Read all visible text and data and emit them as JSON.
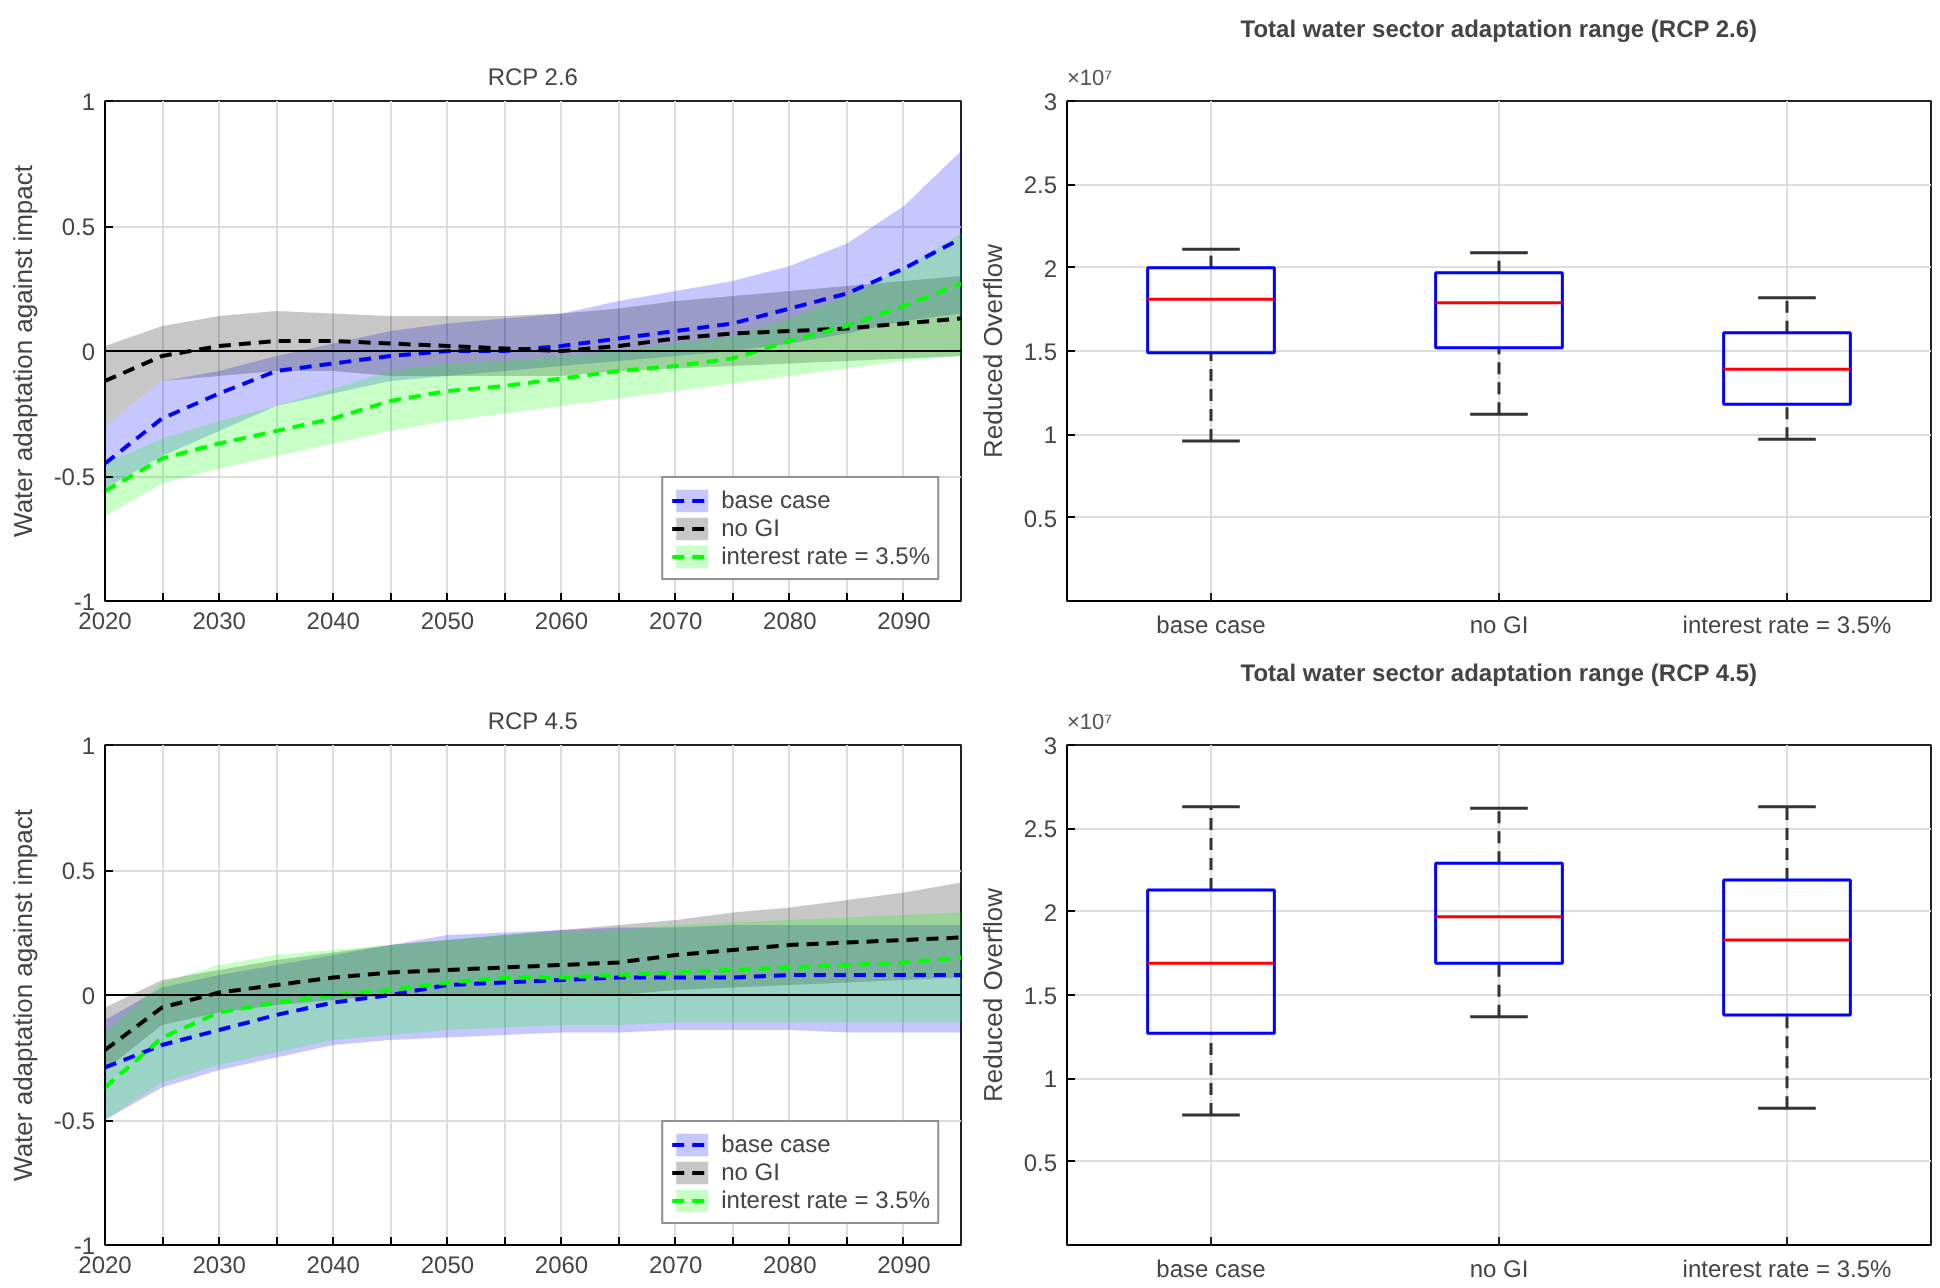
{
  "chart_data": [
    {
      "type": "line",
      "title": "RCP 2.6",
      "ylabel": "Water adaptation against impact",
      "x": [
        2020,
        2025,
        2030,
        2035,
        2040,
        2045,
        2050,
        2055,
        2060,
        2065,
        2070,
        2075,
        2080,
        2085,
        2090,
        2095
      ],
      "series": [
        {
          "name": "base case",
          "color": "#0000ff",
          "values": [
            -0.45,
            -0.27,
            -0.17,
            -0.08,
            -0.05,
            -0.02,
            0.0,
            0.0,
            0.02,
            0.05,
            0.08,
            0.11,
            0.17,
            0.23,
            0.33,
            0.45
          ],
          "upper": [
            -0.3,
            -0.12,
            -0.08,
            -0.02,
            0.03,
            0.08,
            0.11,
            0.13,
            0.15,
            0.2,
            0.24,
            0.28,
            0.34,
            0.43,
            0.58,
            0.8
          ],
          "lower": [
            -0.55,
            -0.42,
            -0.32,
            -0.22,
            -0.17,
            -0.12,
            -0.1,
            -0.08,
            -0.06,
            -0.04,
            -0.02,
            0.0,
            0.03,
            0.07,
            0.12,
            0.15
          ]
        },
        {
          "name": "no GI",
          "color": "#000000",
          "values": [
            -0.12,
            -0.02,
            0.02,
            0.04,
            0.04,
            0.03,
            0.02,
            0.01,
            0.0,
            0.02,
            0.05,
            0.07,
            0.08,
            0.09,
            0.11,
            0.13
          ],
          "upper": [
            0.02,
            0.1,
            0.14,
            0.16,
            0.15,
            0.14,
            0.14,
            0.14,
            0.15,
            0.17,
            0.2,
            0.22,
            0.24,
            0.26,
            0.28,
            0.3
          ],
          "lower": [
            -0.3,
            -0.12,
            -0.1,
            -0.08,
            -0.08,
            -0.1,
            -0.1,
            -0.1,
            -0.1,
            -0.08,
            -0.07,
            -0.06,
            -0.05,
            -0.04,
            -0.03,
            -0.02
          ]
        },
        {
          "name": "interest rate = 3.5%",
          "color": "#00ff00",
          "values": [
            -0.56,
            -0.43,
            -0.37,
            -0.32,
            -0.27,
            -0.2,
            -0.16,
            -0.14,
            -0.11,
            -0.08,
            -0.06,
            -0.03,
            0.04,
            0.1,
            0.18,
            0.27
          ],
          "upper": [
            -0.45,
            -0.35,
            -0.28,
            -0.22,
            -0.15,
            -0.08,
            -0.05,
            -0.04,
            -0.02,
            0.0,
            0.03,
            0.06,
            0.13,
            0.22,
            0.33,
            0.47
          ],
          "lower": [
            -0.66,
            -0.53,
            -0.47,
            -0.42,
            -0.37,
            -0.32,
            -0.28,
            -0.25,
            -0.22,
            -0.19,
            -0.16,
            -0.13,
            -0.1,
            -0.07,
            -0.04,
            -0.02
          ]
        }
      ],
      "xlim": [
        2020,
        2095
      ],
      "ylim": [
        -1,
        1
      ],
      "xticks": [
        2020,
        {
          "value": 2025,
          "label": null
        },
        2030,
        {
          "value": 2035,
          "label": null
        },
        2040,
        {
          "value": 2045,
          "label": null
        },
        2050,
        {
          "value": 2055,
          "label": null
        },
        2060,
        {
          "value": 2065,
          "label": null
        },
        2070,
        {
          "value": 2075,
          "label": null
        },
        2080,
        {
          "value": 2085,
          "label": null
        },
        2090
      ],
      "yticks": [
        -1,
        -0.5,
        0,
        0.5,
        1
      ],
      "ref_lines": [
        {
          "axis": "y",
          "value": 0,
          "color": "#000000"
        }
      ],
      "grid": true,
      "legend": "bottom right",
      "line_style": "dashed"
    },
    {
      "type": "box",
      "title": "Total water sector adaptation range (RCP 2.6)",
      "ylabel": "Reduced Overflow",
      "categories": [
        "base case",
        "no GI",
        "interest rate = 3.5%"
      ],
      "series": [
        {
          "color": "#0000ff",
          "boxes": [
            {
              "low": 0.96,
              "q1": 1.49,
              "median": 1.81,
              "q3": 2.0,
              "high": 2.11
            },
            {
              "low": 1.12,
              "q1": 1.52,
              "median": 1.79,
              "q3": 1.97,
              "high": 2.09
            },
            {
              "low": 0.97,
              "q1": 1.18,
              "median": 1.39,
              "q3": 1.61,
              "high": 1.82
            }
          ]
        }
      ],
      "ylim": [
        0,
        3
      ],
      "yticks": [
        0.5,
        1,
        1.5,
        2,
        2.5,
        3
      ],
      "annotations": [
        "×10⁷"
      ],
      "grid": true
    },
    {
      "type": "line",
      "title": "RCP 4.5",
      "ylabel": "Water adaptation against impact",
      "x": [
        2020,
        2025,
        2030,
        2035,
        2040,
        2045,
        2050,
        2055,
        2060,
        2065,
        2070,
        2075,
        2080,
        2085,
        2090,
        2095
      ],
      "series": [
        {
          "name": "base case",
          "color": "#0000ff",
          "values": [
            -0.29,
            -0.2,
            -0.14,
            -0.08,
            -0.03,
            0.0,
            0.04,
            0.05,
            0.06,
            0.07,
            0.07,
            0.07,
            0.08,
            0.08,
            0.08,
            0.08
          ],
          "upper": [
            -0.1,
            0.03,
            0.08,
            0.12,
            0.16,
            0.2,
            0.24,
            0.25,
            0.26,
            0.27,
            0.27,
            0.28,
            0.28,
            0.28,
            0.28,
            0.28
          ],
          "lower": [
            -0.5,
            -0.37,
            -0.3,
            -0.25,
            -0.2,
            -0.18,
            -0.17,
            -0.16,
            -0.15,
            -0.15,
            -0.14,
            -0.14,
            -0.14,
            -0.15,
            -0.15,
            -0.15
          ]
        },
        {
          "name": "no GI",
          "color": "#000000",
          "values": [
            -0.22,
            -0.05,
            0.01,
            0.04,
            0.07,
            0.09,
            0.1,
            0.11,
            0.12,
            0.13,
            0.16,
            0.18,
            0.2,
            0.21,
            0.22,
            0.23
          ],
          "upper": [
            -0.05,
            0.06,
            0.1,
            0.14,
            0.17,
            0.2,
            0.22,
            0.24,
            0.26,
            0.28,
            0.3,
            0.33,
            0.35,
            0.38,
            0.41,
            0.45
          ],
          "lower": [
            -0.3,
            -0.12,
            -0.07,
            -0.04,
            -0.02,
            0.0,
            0.0,
            0.0,
            0.0,
            0.0,
            0.02,
            0.03,
            0.04,
            0.05,
            0.06,
            0.07
          ]
        },
        {
          "name": "interest rate = 3.5%",
          "color": "#00ff00",
          "values": [
            -0.37,
            -0.17,
            -0.07,
            -0.03,
            0.0,
            0.02,
            0.05,
            0.07,
            0.07,
            0.08,
            0.09,
            0.1,
            0.11,
            0.12,
            0.13,
            0.15
          ],
          "upper": [
            -0.15,
            0.05,
            0.12,
            0.16,
            0.18,
            0.2,
            0.22,
            0.24,
            0.25,
            0.26,
            0.28,
            0.29,
            0.3,
            0.31,
            0.32,
            0.33
          ],
          "lower": [
            -0.5,
            -0.35,
            -0.28,
            -0.23,
            -0.18,
            -0.16,
            -0.14,
            -0.13,
            -0.12,
            -0.12,
            -0.11,
            -0.11,
            -0.11,
            -0.11,
            -0.11,
            -0.11
          ]
        }
      ],
      "xlim": [
        2020,
        2095
      ],
      "ylim": [
        -1,
        1
      ],
      "xticks": [
        2020,
        {
          "value": 2025,
          "label": null
        },
        2030,
        {
          "value": 2035,
          "label": null
        },
        2040,
        {
          "value": 2045,
          "label": null
        },
        2050,
        {
          "value": 2055,
          "label": null
        },
        2060,
        {
          "value": 2065,
          "label": null
        },
        2070,
        {
          "value": 2075,
          "label": null
        },
        2080,
        {
          "value": 2085,
          "label": null
        },
        2090
      ],
      "yticks": [
        -1,
        -0.5,
        0,
        0.5,
        1
      ],
      "ref_lines": [
        {
          "axis": "y",
          "value": 0,
          "color": "#000000"
        }
      ],
      "grid": true,
      "legend": "bottom right",
      "line_style": "dashed"
    },
    {
      "type": "box",
      "title": "Total water sector adaptation range (RCP 4.5)",
      "ylabel": "Reduced Overflow",
      "categories": [
        "base case",
        "no GI",
        "interest rate = 3.5%"
      ],
      "series": [
        {
          "color": "#0000ff",
          "boxes": [
            {
              "low": 0.78,
              "q1": 1.27,
              "median": 1.69,
              "q3": 2.13,
              "high": 2.63
            },
            {
              "low": 1.37,
              "q1": 1.69,
              "median": 1.97,
              "q3": 2.29,
              "high": 2.62
            },
            {
              "low": 0.82,
              "q1": 1.38,
              "median": 1.83,
              "q3": 2.19,
              "high": 2.63
            }
          ]
        }
      ],
      "ylim": [
        0,
        3
      ],
      "yticks": [
        0.5,
        1,
        1.5,
        2,
        2.5,
        3
      ],
      "annotations": [
        "×10⁷"
      ],
      "grid": true
    }
  ]
}
